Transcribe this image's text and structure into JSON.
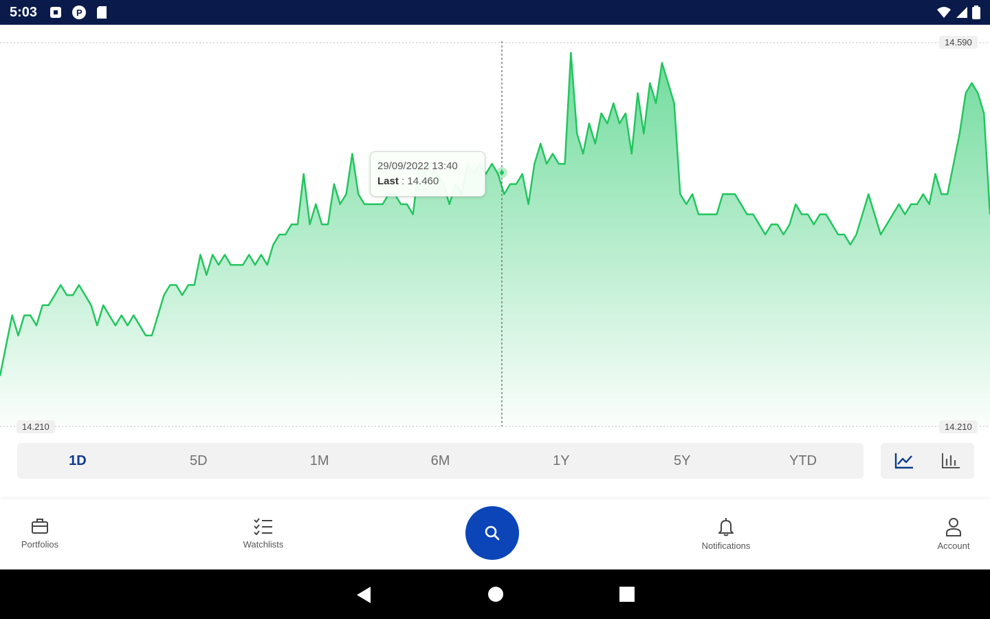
{
  "status_bar": {
    "time": "5:03",
    "left_icons": [
      "notification-square-icon",
      "app-p-icon",
      "sd-card-icon"
    ],
    "right_icons": [
      "wifi-icon",
      "cell-signal-icon",
      "battery-icon"
    ]
  },
  "chart": {
    "price_high_label": "14.590",
    "price_low_left_label": "14.210",
    "price_low_right_label": "14.210",
    "tooltip": {
      "datetime": "29/09/2022 13:40",
      "last_label": "Last",
      "last_value": ": 14.460"
    },
    "line_color": "#22c55e",
    "fill_color": "#3fcf7a"
  },
  "chart_data": {
    "type": "area",
    "ylim": [
      14.21,
      14.59
    ],
    "grid": true,
    "values": [
      14.26,
      14.29,
      14.32,
      14.3,
      14.32,
      14.32,
      14.31,
      14.33,
      14.33,
      14.34,
      14.35,
      14.34,
      14.34,
      14.35,
      14.34,
      14.33,
      14.31,
      14.33,
      14.32,
      14.31,
      14.32,
      14.31,
      14.32,
      14.31,
      14.3,
      14.3,
      14.32,
      14.34,
      14.35,
      14.35,
      14.34,
      14.35,
      14.35,
      14.38,
      14.36,
      14.38,
      14.37,
      14.38,
      14.37,
      14.37,
      14.37,
      14.38,
      14.37,
      14.38,
      14.37,
      14.39,
      14.4,
      14.4,
      14.41,
      14.41,
      14.46,
      14.41,
      14.43,
      14.41,
      14.41,
      14.45,
      14.43,
      14.44,
      14.48,
      14.44,
      14.43,
      14.43,
      14.43,
      14.43,
      14.44,
      14.44,
      14.43,
      14.43,
      14.42,
      14.47,
      14.46,
      14.47,
      14.46,
      14.45,
      14.43,
      14.45,
      14.44,
      14.47,
      14.46,
      14.47,
      14.46,
      14.47,
      14.46,
      14.44,
      14.45,
      14.45,
      14.46,
      14.43,
      14.47,
      14.49,
      14.47,
      14.48,
      14.47,
      14.47,
      14.58,
      14.5,
      14.48,
      14.51,
      14.49,
      14.52,
      14.51,
      14.53,
      14.51,
      14.52,
      14.48,
      14.54,
      14.5,
      14.55,
      14.53,
      14.57,
      14.55,
      14.53,
      14.44,
      14.43,
      14.44,
      14.42,
      14.42,
      14.42,
      14.42,
      14.44,
      14.44,
      14.44,
      14.43,
      14.42,
      14.42,
      14.41,
      14.4,
      14.41,
      14.41,
      14.4,
      14.41,
      14.43,
      14.42,
      14.42,
      14.41,
      14.42,
      14.42,
      14.41,
      14.4,
      14.4,
      14.39,
      14.4,
      14.42,
      14.44,
      14.42,
      14.4,
      14.41,
      14.42,
      14.43,
      14.42,
      14.43,
      14.43,
      14.44,
      14.43,
      14.46,
      14.44,
      14.44,
      14.47,
      14.5,
      14.54,
      14.55,
      14.54,
      14.52,
      14.42
    ]
  },
  "time_ranges": [
    {
      "label": "1D",
      "active": true
    },
    {
      "label": "5D",
      "active": false
    },
    {
      "label": "1M",
      "active": false
    },
    {
      "label": "6M",
      "active": false
    },
    {
      "label": "1Y",
      "active": false
    },
    {
      "label": "5Y",
      "active": false
    },
    {
      "label": "YTD",
      "active": false
    }
  ],
  "chart_type_buttons": [
    "line-chart-icon",
    "bar-chart-icon"
  ],
  "bottom_nav": {
    "portfolios": "Portfolios",
    "watchlists": "Watchlists",
    "search_icon": "search-icon",
    "notifications": "Notifications",
    "account": "Account"
  },
  "system_nav": [
    "back-icon",
    "home-icon",
    "recents-icon"
  ]
}
